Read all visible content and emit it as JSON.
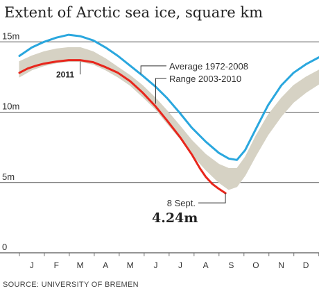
{
  "title": "Extent of Arctic sea ice, square km",
  "source": "SOURCE: UNIVERSITY OF BREMEN",
  "colors": {
    "average": "#2aa7de",
    "range": "#d6d2c4",
    "current": "#e8261c",
    "grid": "#555555",
    "text": "#333333"
  },
  "chart_data": {
    "type": "line",
    "xlabel": "",
    "ylabel": "",
    "xlim": [
      0,
      365
    ],
    "ylim": [
      0,
      16
    ],
    "grid": true,
    "y_ticks": [
      {
        "value": 15,
        "label": "15m"
      },
      {
        "value": 10,
        "label": "10m"
      },
      {
        "value": 5,
        "label": "5m"
      },
      {
        "value": 0,
        "label": "0"
      }
    ],
    "months": [
      {
        "label": "J",
        "day": 15
      },
      {
        "label": "F",
        "day": 45
      },
      {
        "label": "M",
        "day": 74
      },
      {
        "label": "A",
        "day": 105
      },
      {
        "label": "M",
        "day": 135
      },
      {
        "label": "J",
        "day": 166
      },
      {
        "label": "J",
        "day": 196
      },
      {
        "label": "A",
        "day": 227
      },
      {
        "label": "S",
        "day": 258
      },
      {
        "label": "O",
        "day": 288
      },
      {
        "label": "N",
        "day": 319
      },
      {
        "label": "D",
        "day": 349
      }
    ],
    "series": [
      {
        "name": "Average 1972-2008",
        "kind": "line",
        "color": "#2aa7de",
        "points": [
          [
            0,
            14.0
          ],
          [
            15,
            14.6
          ],
          [
            30,
            15.0
          ],
          [
            45,
            15.3
          ],
          [
            60,
            15.5
          ],
          [
            74,
            15.4
          ],
          [
            90,
            15.1
          ],
          [
            105,
            14.6
          ],
          [
            120,
            14.0
          ],
          [
            135,
            13.3
          ],
          [
            150,
            12.6
          ],
          [
            166,
            11.8
          ],
          [
            180,
            11.0
          ],
          [
            196,
            9.9
          ],
          [
            210,
            8.9
          ],
          [
            227,
            7.9
          ],
          [
            243,
            7.1
          ],
          [
            255,
            6.7
          ],
          [
            265,
            6.6
          ],
          [
            275,
            7.3
          ],
          [
            288,
            8.8
          ],
          [
            303,
            10.5
          ],
          [
            319,
            11.9
          ],
          [
            334,
            12.8
          ],
          [
            349,
            13.4
          ],
          [
            365,
            13.9
          ]
        ]
      },
      {
        "name": "Range 2003-2010",
        "kind": "band",
        "color": "#d6d2c4",
        "upper": [
          [
            0,
            13.6
          ],
          [
            15,
            14.0
          ],
          [
            30,
            14.3
          ],
          [
            45,
            14.5
          ],
          [
            60,
            14.6
          ],
          [
            74,
            14.6
          ],
          [
            90,
            14.3
          ],
          [
            105,
            13.8
          ],
          [
            120,
            13.2
          ],
          [
            135,
            12.6
          ],
          [
            150,
            11.9
          ],
          [
            166,
            11.0
          ],
          [
            180,
            10.1
          ],
          [
            196,
            9.0
          ],
          [
            210,
            8.0
          ],
          [
            227,
            7.0
          ],
          [
            243,
            6.3
          ],
          [
            255,
            6.0
          ],
          [
            265,
            6.0
          ],
          [
            275,
            6.8
          ],
          [
            288,
            8.3
          ],
          [
            303,
            9.8
          ],
          [
            319,
            11.0
          ],
          [
            334,
            11.9
          ],
          [
            349,
            12.5
          ],
          [
            365,
            13.0
          ]
        ],
        "lower": [
          [
            0,
            12.5
          ],
          [
            15,
            13.0
          ],
          [
            30,
            13.3
          ],
          [
            45,
            13.5
          ],
          [
            60,
            13.6
          ],
          [
            74,
            13.6
          ],
          [
            90,
            13.4
          ],
          [
            105,
            13.0
          ],
          [
            120,
            12.5
          ],
          [
            135,
            11.9
          ],
          [
            150,
            11.1
          ],
          [
            166,
            10.2
          ],
          [
            180,
            9.2
          ],
          [
            196,
            8.1
          ],
          [
            210,
            7.0
          ],
          [
            227,
            5.9
          ],
          [
            243,
            5.0
          ],
          [
            255,
            4.5
          ],
          [
            265,
            4.7
          ],
          [
            275,
            5.5
          ],
          [
            288,
            6.9
          ],
          [
            303,
            8.4
          ],
          [
            319,
            9.7
          ],
          [
            334,
            10.7
          ],
          [
            349,
            11.4
          ],
          [
            365,
            12.0
          ]
        ]
      },
      {
        "name": "2011",
        "kind": "line",
        "color": "#e8261c",
        "points": [
          [
            0,
            12.8
          ],
          [
            10,
            13.1
          ],
          [
            20,
            13.3
          ],
          [
            30,
            13.45
          ],
          [
            45,
            13.6
          ],
          [
            60,
            13.7
          ],
          [
            74,
            13.7
          ],
          [
            90,
            13.55
          ],
          [
            105,
            13.2
          ],
          [
            120,
            12.8
          ],
          [
            135,
            12.2
          ],
          [
            150,
            11.4
          ],
          [
            166,
            10.4
          ],
          [
            180,
            9.4
          ],
          [
            196,
            8.2
          ],
          [
            210,
            7.0
          ],
          [
            220,
            6.0
          ],
          [
            227,
            5.4
          ],
          [
            235,
            4.9
          ],
          [
            243,
            4.55
          ],
          [
            251,
            4.24
          ]
        ]
      }
    ],
    "annotations": [
      {
        "text": "Average 1972-2008"
      },
      {
        "text": "Range 2003-2010"
      },
      {
        "text": "2011"
      },
      {
        "text": "8 Sept."
      },
      {
        "text": "4.24m"
      }
    ]
  }
}
